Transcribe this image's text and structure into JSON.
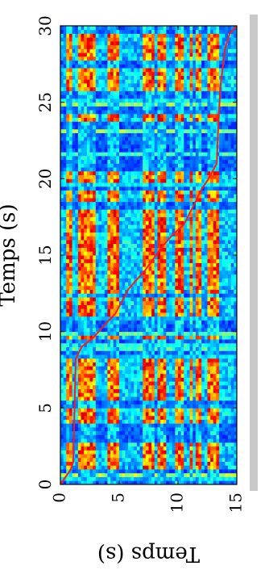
{
  "chart_data": {
    "type": "heatmap",
    "title": "",
    "xlabel": "Temps (s)",
    "ylabel": "Temps (s)",
    "xlim": [
      0,
      30
    ],
    "ylim": [
      0,
      15
    ],
    "xticks": [
      0,
      5,
      10,
      15,
      20,
      25,
      30
    ],
    "yticks": [
      0,
      5,
      10,
      15
    ],
    "grid": false,
    "colormap": "jet",
    "path_color": "#ff1a1a",
    "alignment_path": {
      "x": [
        0,
        1,
        1.5,
        5,
        8.2,
        9.0,
        9.6,
        10.3,
        11.2,
        12.8,
        14.0,
        15.5,
        16.3,
        17.0,
        18.2,
        19.3,
        20.0,
        21.0,
        23.0,
        26.0,
        28.5,
        29.5,
        30
      ],
      "y": [
        0,
        0.9,
        1.1,
        1.2,
        1.3,
        1.8,
        2.8,
        3.6,
        4.7,
        5.8,
        7.2,
        8.6,
        9.5,
        10.5,
        11.3,
        12.0,
        12.6,
        13.3,
        13.4,
        13.6,
        14.0,
        14.4,
        15
      ]
    },
    "block_segments": {
      "x": [
        [
          0.9,
          2.7
        ],
        [
          4.1,
          4.9
        ],
        [
          5.4,
          8.3
        ],
        [
          9.4,
          9.8
        ],
        [
          11.0,
          12.2
        ],
        [
          12.6,
          15.0
        ],
        [
          15.1,
          17.9
        ],
        [
          18.6,
          19.2
        ],
        [
          19.7,
          20.4
        ],
        [
          23.7,
          24.3
        ],
        [
          25.7,
          27.2
        ],
        [
          27.8,
          29.4
        ]
      ],
      "y": [
        [
          0.6,
          1.0
        ],
        [
          1.5,
          3.0
        ],
        [
          4.0,
          5.0
        ],
        [
          7.0,
          8.0
        ],
        [
          8.2,
          9.0
        ],
        [
          9.8,
          10.4
        ],
        [
          10.9,
          11.3
        ],
        [
          11.6,
          12.0
        ],
        [
          12.6,
          13.5
        ]
      ]
    }
  }
}
